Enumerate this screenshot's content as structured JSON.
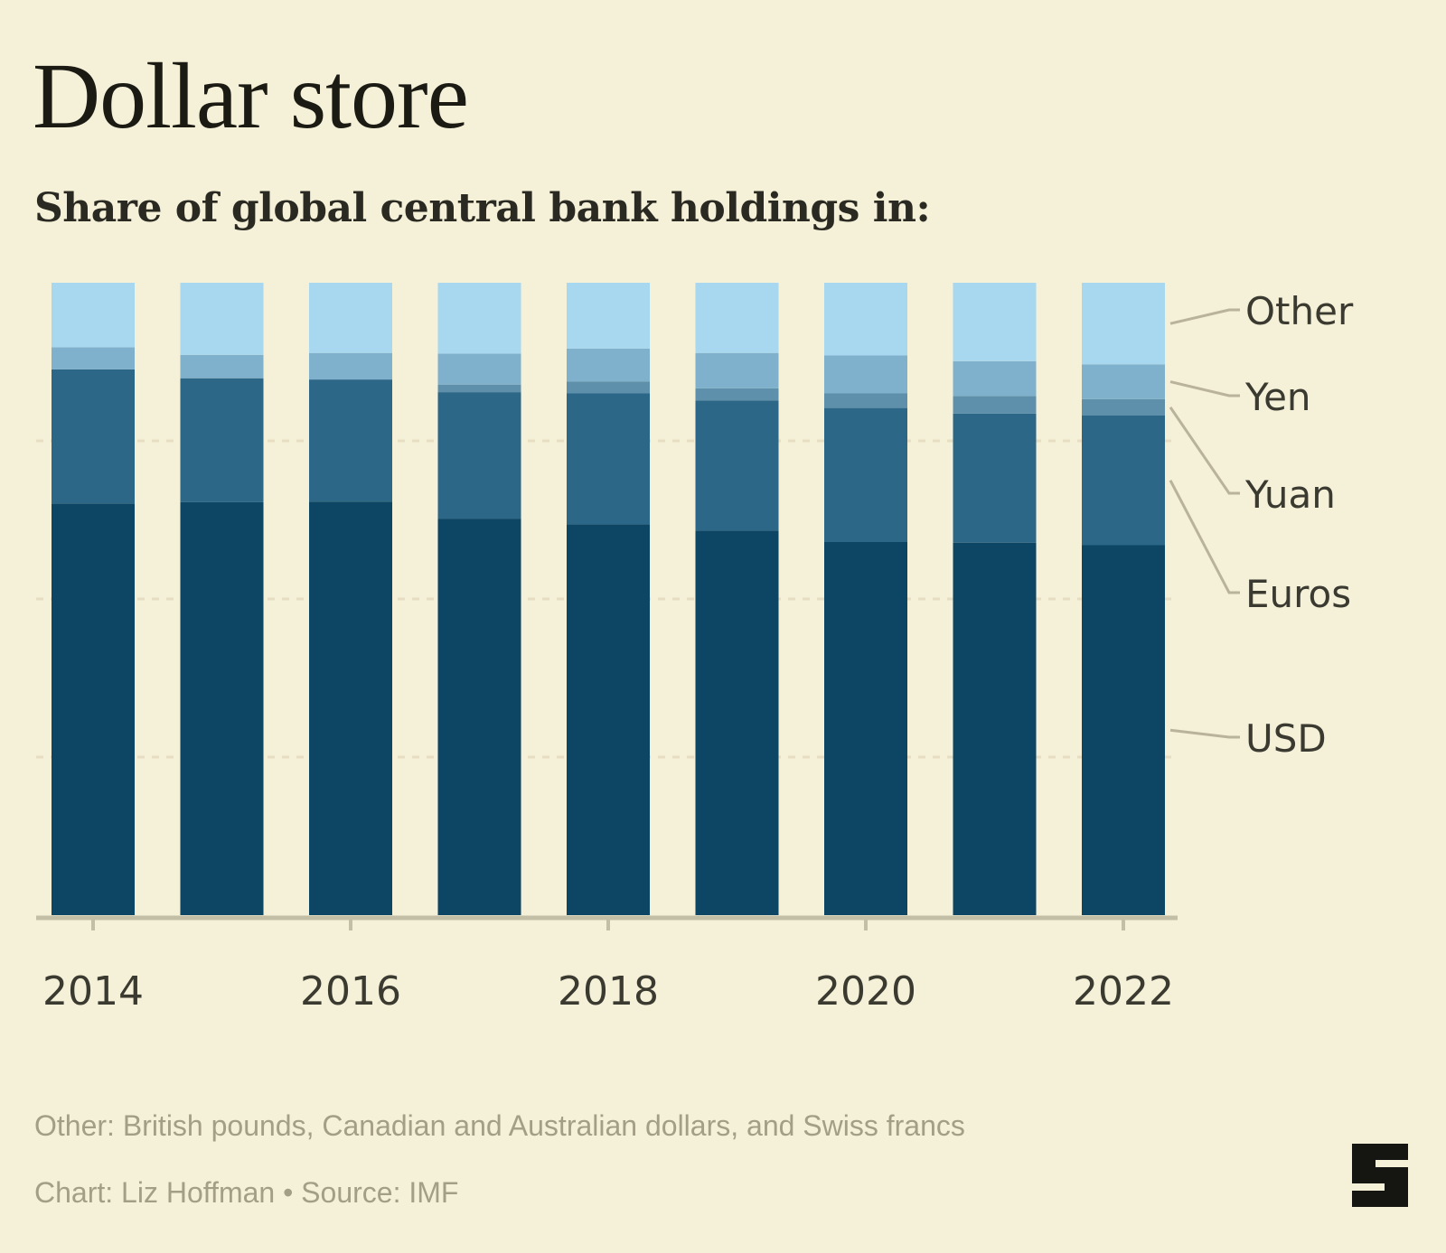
{
  "title": "Dollar store",
  "subtitle": "Share of global central bank holdings in:",
  "footnote": "Other: British pounds, Canadian and Australian dollars, and Swiss francs",
  "credit": "Chart: Liz Hoffman • Source: IMF",
  "colors": {
    "background": "#f5f0d8",
    "USD": "#0d4564",
    "Euros": "#2c6787",
    "Yuan": "#5e90ac",
    "Yen": "#7fb1cc",
    "Other": "#a8d7f0",
    "axis": "#c3bea6",
    "gridline": "#e7ddc2",
    "tick_text": "#3a3a30",
    "leader": "#b8b39a"
  },
  "chart_data": {
    "type": "bar",
    "stacked": true,
    "categories": [
      "2014",
      "2015",
      "2016",
      "2017",
      "2018",
      "2019",
      "2020",
      "2021",
      "2022"
    ],
    "tick_labels": [
      "2014",
      "2016",
      "2018",
      "2020",
      "2022"
    ],
    "ylim": [
      0,
      100
    ],
    "grid": true,
    "legend_position": "right, labels beside last bar",
    "series": [
      {
        "name": "USD",
        "values": [
          65.1,
          65.3,
          65.4,
          62.7,
          61.8,
          60.8,
          59.0,
          58.9,
          58.5
        ]
      },
      {
        "name": "Euros",
        "values": [
          21.2,
          19.6,
          19.3,
          20.0,
          20.7,
          20.6,
          21.2,
          20.4,
          20.5
        ]
      },
      {
        "name": "Yuan",
        "values": [
          0.0,
          0.0,
          0.0,
          1.2,
          1.9,
          1.9,
          2.3,
          2.8,
          2.6
        ]
      },
      {
        "name": "Yen",
        "values": [
          3.5,
          3.7,
          4.2,
          4.9,
          5.2,
          5.6,
          6.0,
          5.5,
          5.5
        ]
      },
      {
        "name": "Other",
        "values": [
          10.2,
          11.4,
          11.1,
          11.2,
          10.4,
          11.1,
          11.5,
          12.4,
          12.9
        ]
      }
    ]
  }
}
